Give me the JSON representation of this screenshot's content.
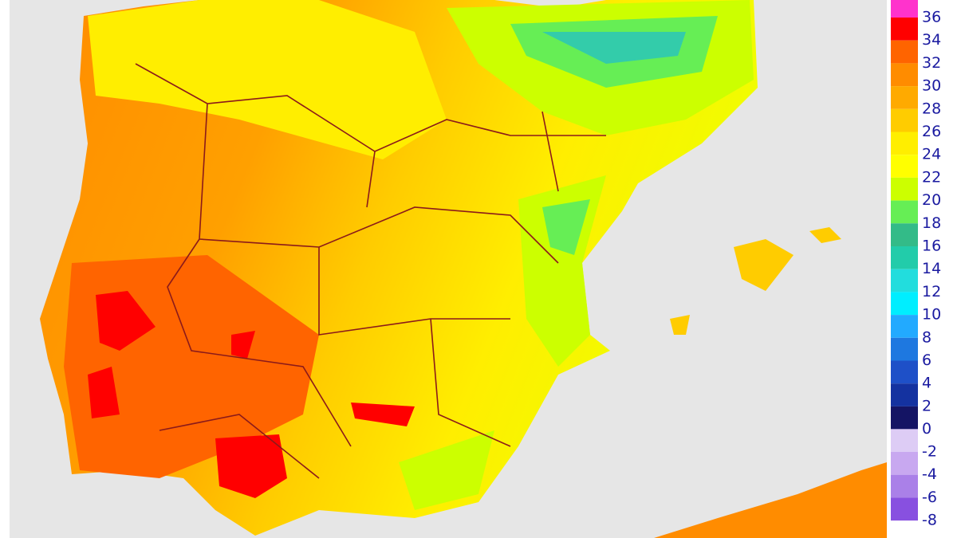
{
  "legend": {
    "positive": [
      {
        "label": "36",
        "color": "#ff33cc"
      },
      {
        "label": "34",
        "color": "#ff0000"
      },
      {
        "label": "32",
        "color": "#ff6400"
      },
      {
        "label": "30",
        "color": "#ff8c00"
      },
      {
        "label": "28",
        "color": "#ffaa00"
      },
      {
        "label": "26",
        "color": "#ffcc00"
      },
      {
        "label": "24",
        "color": "#ffee00"
      },
      {
        "label": "22",
        "color": "#ffff00"
      },
      {
        "label": "20",
        "color": "#ccff00"
      },
      {
        "label": "18",
        "color": "#66ee55"
      },
      {
        "label": "16",
        "color": "#33bb88"
      },
      {
        "label": "14",
        "color": "#22ccaa"
      },
      {
        "label": "12",
        "color": "#22dddd"
      },
      {
        "label": "10",
        "color": "#00eeff"
      },
      {
        "label": "8",
        "color": "#22aaff"
      },
      {
        "label": "6",
        "color": "#1e78e0"
      },
      {
        "label": "4",
        "color": "#1e50c8"
      },
      {
        "label": "2",
        "color": "#1432a0"
      },
      {
        "label": "0",
        "color": "#141464"
      }
    ],
    "negative": [
      {
        "label": "-2",
        "color": "#ddccf5"
      },
      {
        "label": "-4",
        "color": "#c8a8f0"
      },
      {
        "label": "-6",
        "color": "#aa80e8"
      },
      {
        "label": "-8",
        "color": "#8850e0"
      }
    ]
  }
}
